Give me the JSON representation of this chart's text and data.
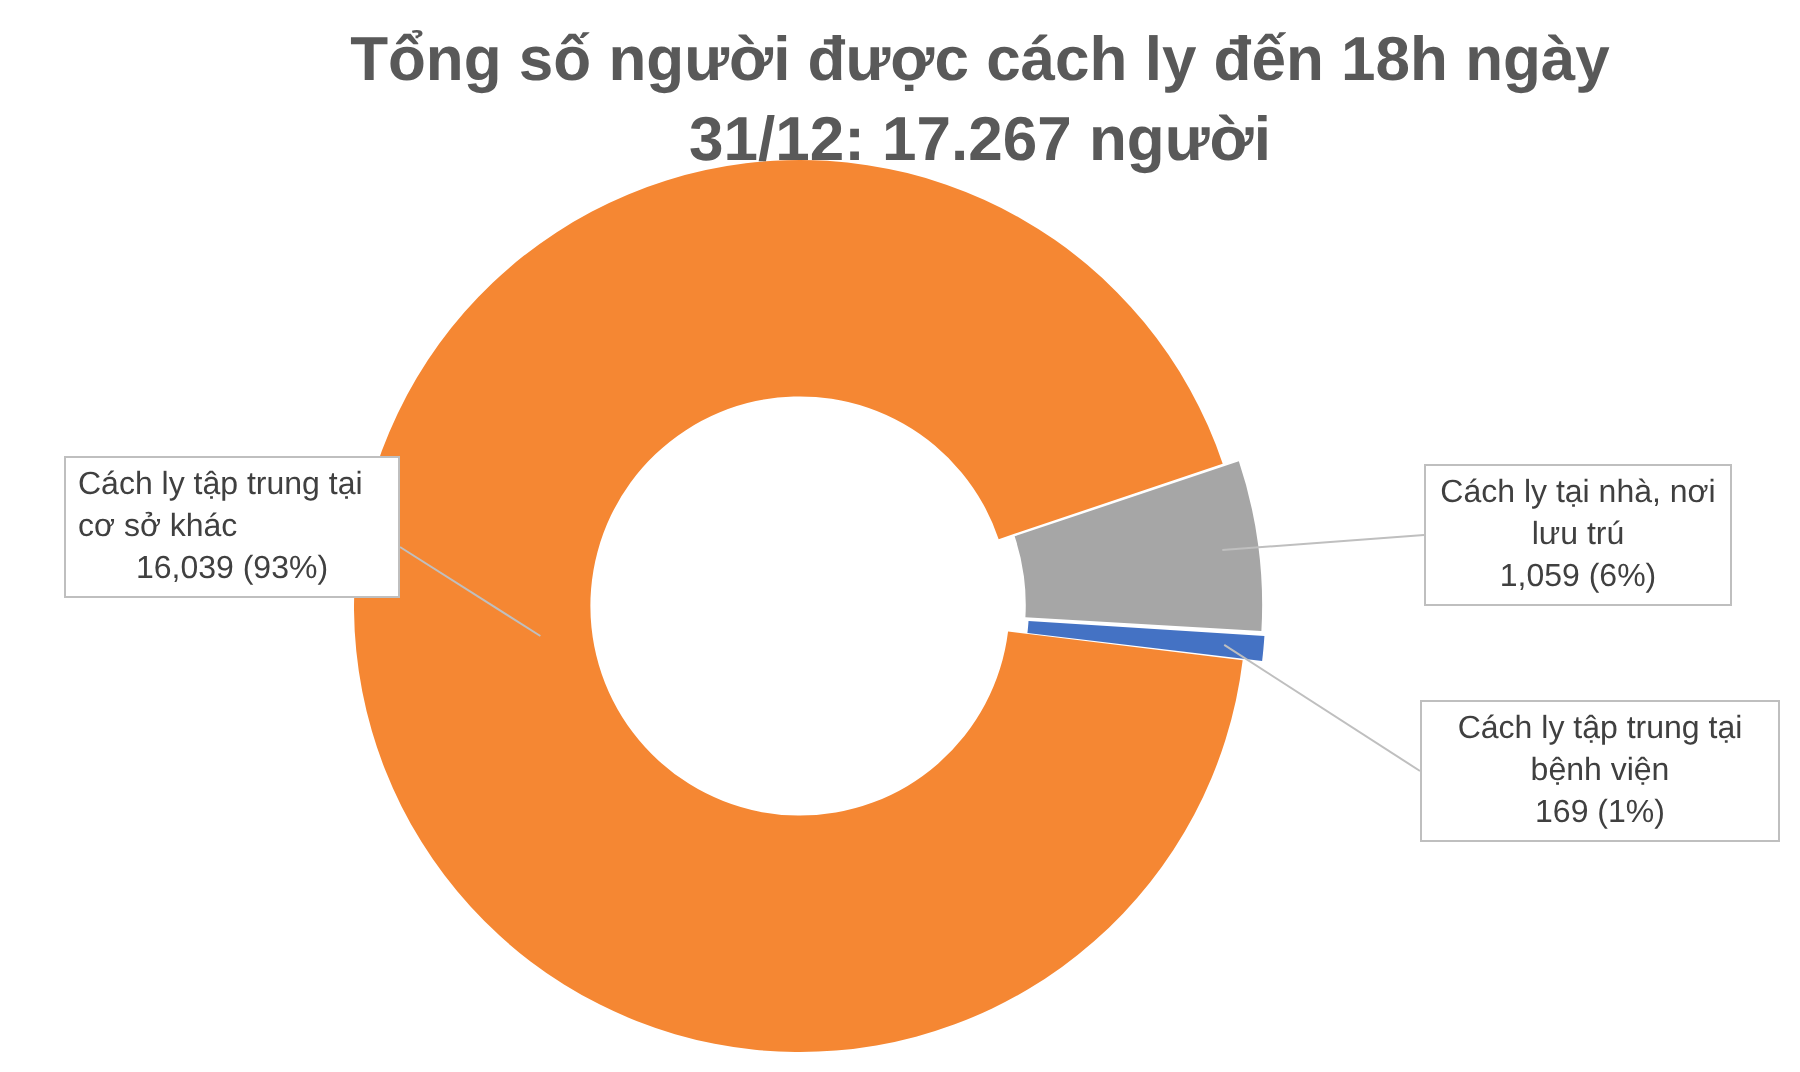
{
  "chart_data": {
    "type": "donut",
    "title": "Tổng số người được cách ly đến 18h ngày 31/12: 17.267 người",
    "categories": [
      "Cách ly tập trung tại cơ sở khác",
      "Cách ly tại nhà, nơi lưu trú",
      "Cách ly tập trung tại bệnh viện"
    ],
    "values": [
      16039,
      1059,
      169
    ],
    "colors": [
      "#f58733",
      "#a6a6a6",
      "#4472c4"
    ],
    "value_labels": [
      "16,039 (93%)",
      "1,059 (6%)",
      "169 (1%)"
    ],
    "legend": false
  }
}
